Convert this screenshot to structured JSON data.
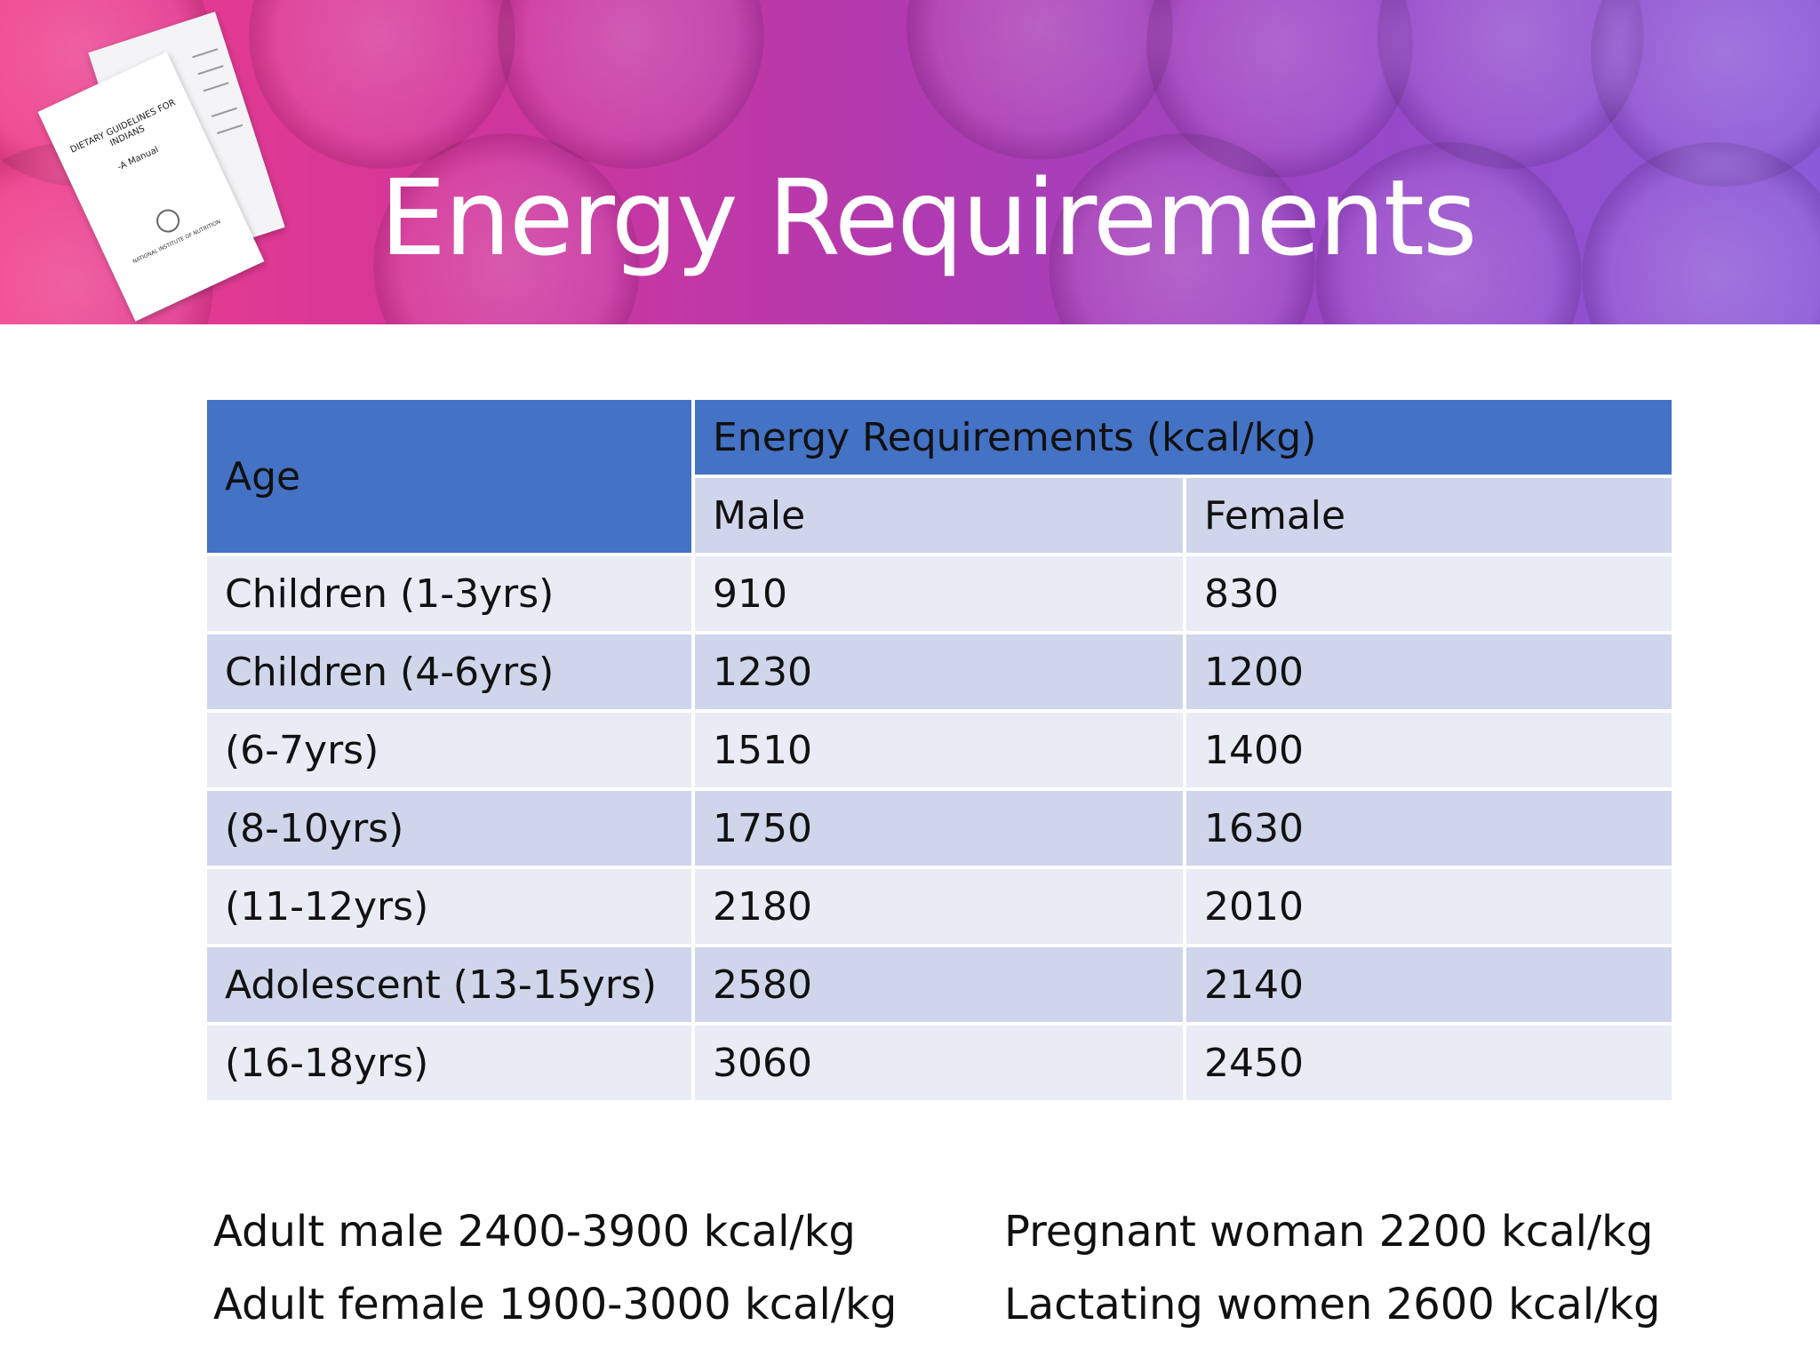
{
  "banner": {
    "title": "Energy Requirements",
    "booklet": {
      "title": "DIETARY GUIDELINES FOR INDIANS",
      "subtitle": "-A Manual",
      "publisher": "NATIONAL INSTITUTE OF NUTRITION"
    }
  },
  "table": {
    "age_header": "Age",
    "group_header": "Energy Requirements (kcal/kg)",
    "male_header": "Male",
    "female_header": "Female",
    "rows": [
      {
        "age": "Children (1-3yrs)",
        "male": "910",
        "female": "830"
      },
      {
        "age": "Children (4-6yrs)",
        "male": "1230",
        "female": "1200"
      },
      {
        "age": "(6-7yrs)",
        "male": "1510",
        "female": "1400"
      },
      {
        "age": "(8-10yrs)",
        "male": "1750",
        "female": "1630"
      },
      {
        "age": "(11-12yrs)",
        "male": "2180",
        "female": "2010"
      },
      {
        "age": "Adolescent (13-15yrs)",
        "male": "2580",
        "female": "2140"
      },
      {
        "age": "(16-18yrs)",
        "male": "3060",
        "female": "2450"
      }
    ]
  },
  "notes": {
    "adult_male": "Adult male 2400-3900 kcal/kg",
    "adult_female": "Adult female 1900-3000 kcal/kg",
    "pregnant": "Pregnant woman 2200 kcal/kg",
    "lactating": "Lactating women 2600 kcal/kg"
  },
  "colors": {
    "header_blue": "#4472c4",
    "row_light": "#e9ebf5",
    "row_dark": "#cfd5ea",
    "banner_pink": "#ef3f8a",
    "banner_purple": "#8a5ad8"
  }
}
